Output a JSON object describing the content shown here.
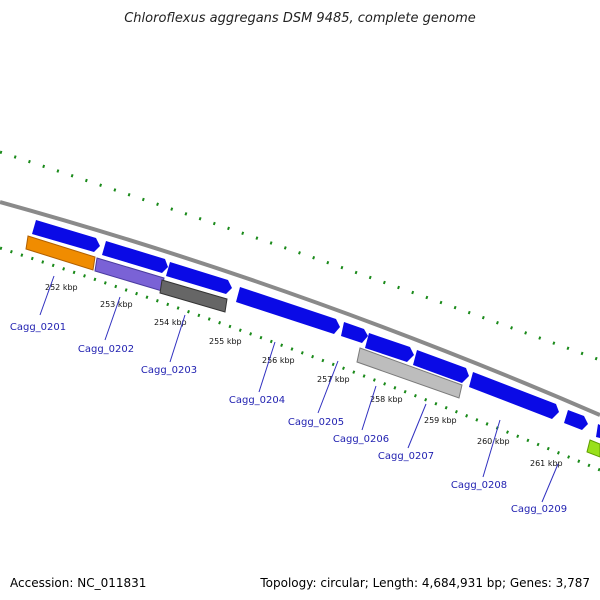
{
  "title": "Chloroflexus aggregans DSM 9485, complete genome",
  "footer": {
    "accession": "Accession: NC_011831",
    "summary": "Topology: circular; Length: 4,684,931 bp; Genes: 3,787"
  },
  "colors": {
    "backbone": "#8a8a8a",
    "forward_strand": "#0a0ae6",
    "tick_dots": "#1a8a1a",
    "label_text": "#1f1fb0",
    "leader_line": "#3030c0"
  },
  "kbp_labels": [
    "252 kbp",
    "253 kbp",
    "254 kbp",
    "255 kbp",
    "256 kbp",
    "257 kbp",
    "258 kbp",
    "259 kbp",
    "260 kbp",
    "261 kbp"
  ],
  "genes": [
    {
      "name": "Cagg_0201",
      "color": "#f08c00"
    },
    {
      "name": "Cagg_0202",
      "color": "#7a62d6"
    },
    {
      "name": "Cagg_0203",
      "color": "#666666"
    },
    {
      "name": "Cagg_0204",
      "color": "#0a0ae6"
    },
    {
      "name": "Cagg_0205",
      "color": "#0a0ae6"
    },
    {
      "name": "Cagg_0206",
      "color": "#0a0ae6"
    },
    {
      "name": "Cagg_0207",
      "color": "#bdbdbd"
    },
    {
      "name": "Cagg_0208",
      "color": "#0a0ae6"
    },
    {
      "name": "Cagg_0209",
      "color": "#0a0ae6"
    }
  ],
  "extra_feature_colors": [
    "#99e01a"
  ]
}
